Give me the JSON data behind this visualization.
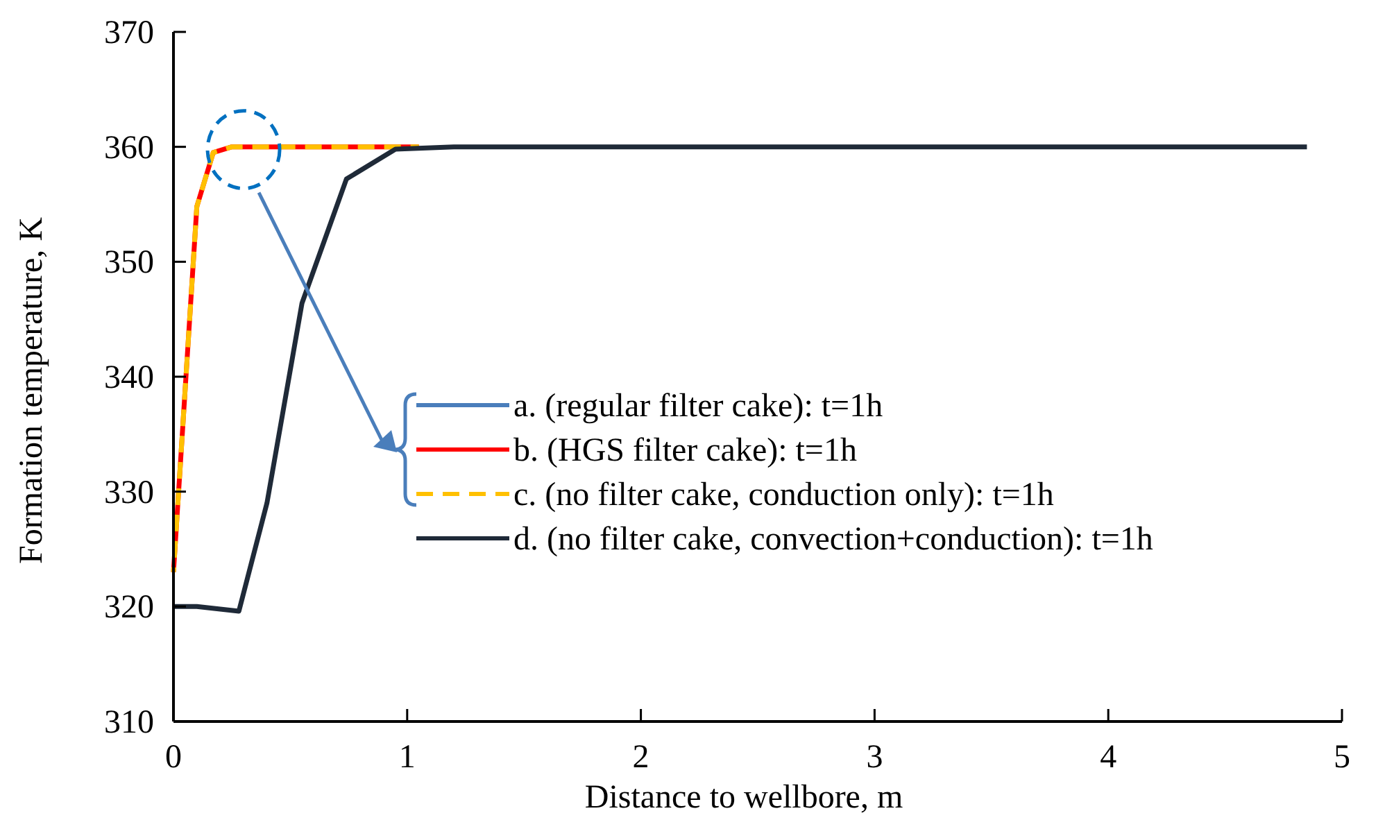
{
  "chart_data": {
    "type": "line",
    "xlabel": "Distance to wellbore, m",
    "ylabel": "Formation temperature, K",
    "xlim": [
      0,
      5
    ],
    "ylim": [
      310,
      370
    ],
    "xticks": [
      0,
      1,
      2,
      3,
      4,
      5
    ],
    "yticks": [
      310,
      320,
      330,
      340,
      350,
      360,
      370
    ],
    "grid": false,
    "legend": "right",
    "marker": "none",
    "series": [
      {
        "name": "a. (regular filter cake): t=1h",
        "color": "#4a7ebb",
        "line_style": "solid"
      },
      {
        "name": "b. (HGS filter cake): t=1h",
        "color": "#ff0000",
        "line_style": "solid",
        "x": [
          0,
          0.1,
          0.17,
          0.25,
          0.4,
          1.05
        ],
        "values": [
          323,
          354.8,
          359.5,
          360,
          360,
          360
        ]
      },
      {
        "name": "c. (no filter cake, conduction only): t=1h",
        "color": "#ffc000",
        "line_style": "dashed",
        "x": [
          0,
          0.1,
          0.17,
          0.25,
          0.4,
          1.05
        ],
        "values": [
          323,
          354.8,
          359.5,
          360,
          360,
          360
        ]
      },
      {
        "name": "d. (no filter cake, convection+conduction): t=1h",
        "color": "#1f2a38",
        "line_style": "solid",
        "x": [
          0,
          0.1,
          0.28,
          0.4,
          0.55,
          0.74,
          0.95,
          1.2,
          2,
          3,
          4,
          4.85
        ],
        "values": [
          320,
          320,
          319.6,
          329,
          346.4,
          357.2,
          359.8,
          360,
          360,
          360,
          360,
          360
        ]
      }
    ]
  }
}
